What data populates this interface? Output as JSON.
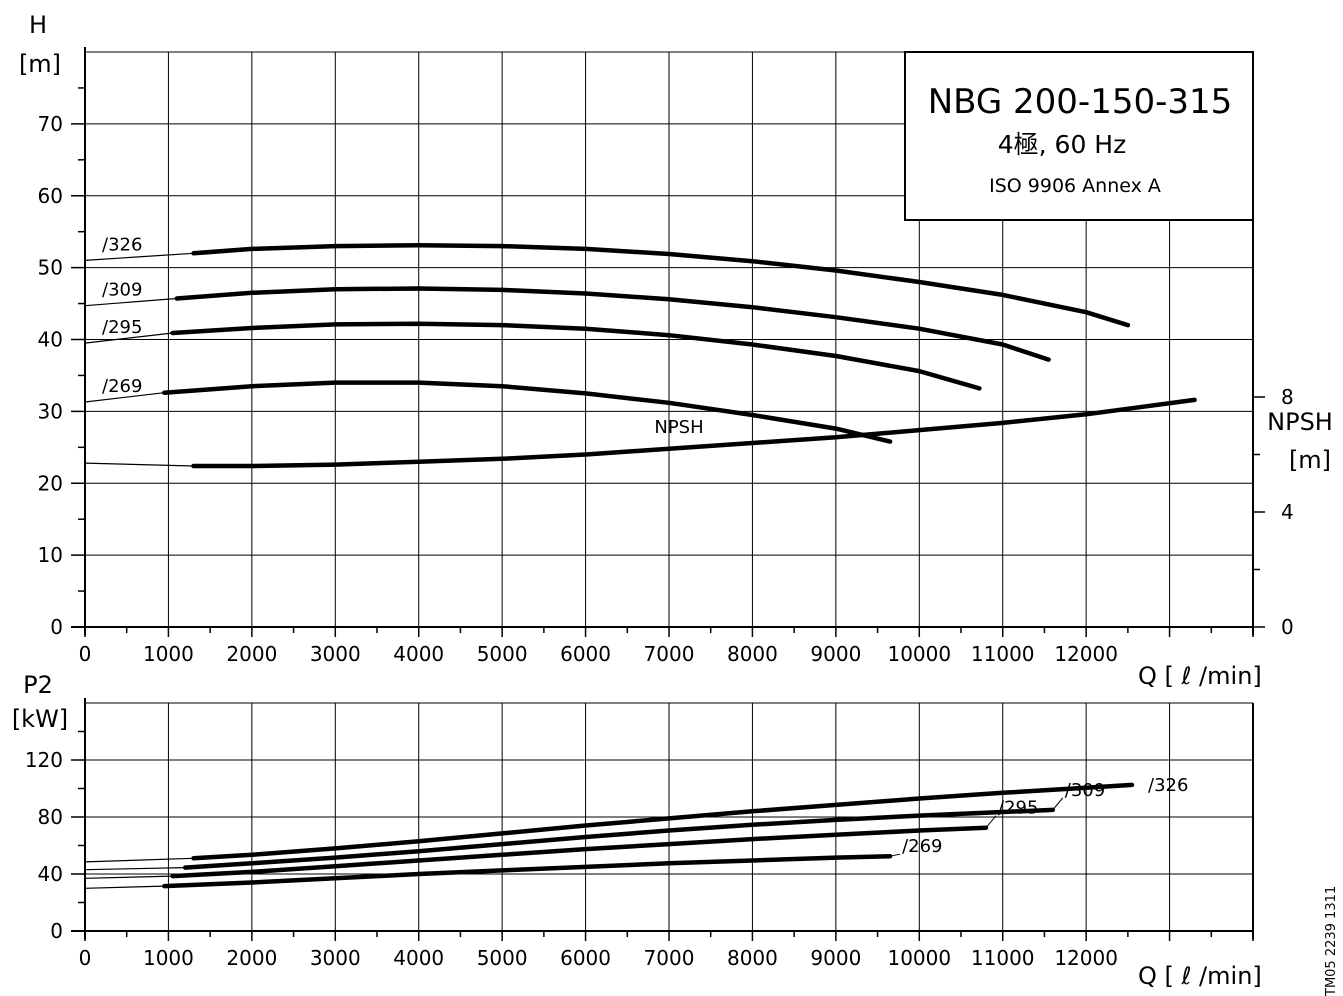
{
  "chart_data": [
    {
      "type": "line",
      "panel": "head",
      "title_box": {
        "model": "NBG 200-150-315",
        "poles_freq": "4極, 60 Hz",
        "standard": "ISO 9906 Annex A"
      },
      "y_axis": {
        "label": "H",
        "unit": "[m]",
        "ylim": [
          0,
          80
        ],
        "ticks": [
          0,
          10,
          20,
          30,
          40,
          50,
          60,
          70
        ]
      },
      "y2_axis": {
        "label": "NPSH",
        "unit": "[m]",
        "ylim": [
          0,
          20
        ],
        "ticks": [
          0,
          4,
          8
        ]
      },
      "x_axis": {
        "label": "Q [ ℓ /min]",
        "xlim": [
          0,
          14000
        ],
        "ticks": [
          0,
          1000,
          2000,
          3000,
          4000,
          5000,
          6000,
          7000,
          8000,
          9000,
          10000,
          11000,
          12000
        ]
      },
      "grid": true,
      "series": [
        {
          "name": "/326",
          "axis": "y",
          "extension": [
            [
              0,
              51
            ],
            [
              1300,
              52
            ]
          ],
          "points": [
            [
              1300,
              52
            ],
            [
              2000,
              52.6
            ],
            [
              3000,
              53
            ],
            [
              4000,
              53.1
            ],
            [
              5000,
              53
            ],
            [
              6000,
              52.6
            ],
            [
              7000,
              51.9
            ],
            [
              8000,
              50.9
            ],
            [
              9000,
              49.6
            ],
            [
              10000,
              48
            ],
            [
              11000,
              46.2
            ],
            [
              12000,
              43.8
            ],
            [
              12500,
              42
            ]
          ]
        },
        {
          "name": "/309",
          "axis": "y",
          "extension": [
            [
              0,
              44.7
            ],
            [
              1100,
              45.7
            ]
          ],
          "points": [
            [
              1100,
              45.7
            ],
            [
              2000,
              46.5
            ],
            [
              3000,
              47
            ],
            [
              4000,
              47.1
            ],
            [
              5000,
              46.9
            ],
            [
              6000,
              46.4
            ],
            [
              7000,
              45.6
            ],
            [
              8000,
              44.5
            ],
            [
              9000,
              43.1
            ],
            [
              10000,
              41.5
            ],
            [
              11000,
              39.3
            ],
            [
              11550,
              37.2
            ]
          ]
        },
        {
          "name": "/295",
          "axis": "y",
          "extension": [
            [
              0,
              39.5
            ],
            [
              1050,
              40.9
            ]
          ],
          "points": [
            [
              1050,
              40.9
            ],
            [
              2000,
              41.6
            ],
            [
              3000,
              42.1
            ],
            [
              4000,
              42.2
            ],
            [
              5000,
              42
            ],
            [
              6000,
              41.5
            ],
            [
              7000,
              40.6
            ],
            [
              8000,
              39.3
            ],
            [
              9000,
              37.7
            ],
            [
              10000,
              35.6
            ],
            [
              10720,
              33.2
            ]
          ]
        },
        {
          "name": "/269",
          "axis": "y",
          "extension": [
            [
              0,
              31.3
            ],
            [
              950,
              32.6
            ]
          ],
          "points": [
            [
              950,
              32.6
            ],
            [
              2000,
              33.5
            ],
            [
              3000,
              34
            ],
            [
              4000,
              34
            ],
            [
              5000,
              33.5
            ],
            [
              6000,
              32.5
            ],
            [
              7000,
              31.2
            ],
            [
              8000,
              29.5
            ],
            [
              9000,
              27.6
            ],
            [
              9650,
              25.8
            ]
          ]
        },
        {
          "name": "NPSH",
          "axis": "y2",
          "extension": [
            [
              0,
              5.7
            ],
            [
              1300,
              5.6
            ]
          ],
          "points": [
            [
              1300,
              5.6
            ],
            [
              2000,
              5.6
            ],
            [
              3000,
              5.65
            ],
            [
              4000,
              5.75
            ],
            [
              5000,
              5.85
            ],
            [
              6000,
              6
            ],
            [
              7000,
              6.2
            ],
            [
              8000,
              6.4
            ],
            [
              9000,
              6.6
            ],
            [
              10000,
              6.85
            ],
            [
              11000,
              7.1
            ],
            [
              12000,
              7.4
            ],
            [
              13300,
              7.9
            ]
          ]
        }
      ]
    },
    {
      "type": "line",
      "panel": "power",
      "y_axis": {
        "label": "P2",
        "unit": "[kW]",
        "ylim": [
          0,
          160
        ],
        "ticks": [
          0,
          40,
          80,
          120
        ]
      },
      "x_axis": {
        "label": "Q [ ℓ /min]",
        "xlim": [
          0,
          14000
        ],
        "ticks": [
          0,
          1000,
          2000,
          3000,
          4000,
          5000,
          6000,
          7000,
          8000,
          9000,
          10000,
          11000,
          12000
        ]
      },
      "grid": true,
      "series": [
        {
          "name": "/326",
          "extension": [
            [
              0,
              48.5
            ],
            [
              1300,
              51
            ]
          ],
          "points": [
            [
              1300,
              51
            ],
            [
              2000,
              53.5
            ],
            [
              3000,
              58
            ],
            [
              4000,
              63
            ],
            [
              5000,
              68.5
            ],
            [
              6000,
              74
            ],
            [
              7000,
              79
            ],
            [
              8000,
              84
            ],
            [
              9000,
              88.5
            ],
            [
              10000,
              93
            ],
            [
              11000,
              97
            ],
            [
              12000,
              100.5
            ],
            [
              12550,
              102.5
            ]
          ]
        },
        {
          "name": "/309",
          "extension": [
            [
              0,
              43
            ],
            [
              1200,
              44.5
            ]
          ],
          "points": [
            [
              1200,
              44.5
            ],
            [
              2000,
              47.5
            ],
            [
              3000,
              51.5
            ],
            [
              4000,
              56
            ],
            [
              5000,
              61
            ],
            [
              6000,
              66
            ],
            [
              7000,
              70.5
            ],
            [
              8000,
              74.5
            ],
            [
              9000,
              78
            ],
            [
              10000,
              81
            ],
            [
              11000,
              83.5
            ],
            [
              11600,
              85
            ]
          ]
        },
        {
          "name": "/295",
          "extension": [
            [
              0,
              37
            ],
            [
              1050,
              38.5
            ]
          ],
          "points": [
            [
              1050,
              38.5
            ],
            [
              2000,
              41.5
            ],
            [
              3000,
              45.5
            ],
            [
              4000,
              49.5
            ],
            [
              5000,
              53.5
            ],
            [
              6000,
              57.5
            ],
            [
              7000,
              61
            ],
            [
              8000,
              64.5
            ],
            [
              9000,
              67.5
            ],
            [
              10000,
              70.5
            ],
            [
              10800,
              72.5
            ]
          ]
        },
        {
          "name": "/269",
          "extension": [
            [
              0,
              30
            ],
            [
              950,
              31.5
            ]
          ],
          "points": [
            [
              950,
              31.5
            ],
            [
              2000,
              34
            ],
            [
              3000,
              37
            ],
            [
              4000,
              40
            ],
            [
              5000,
              42.5
            ],
            [
              6000,
              45
            ],
            [
              7000,
              47.5
            ],
            [
              8000,
              49.5
            ],
            [
              9000,
              51.5
            ],
            [
              9650,
              52.5
            ]
          ]
        }
      ]
    }
  ],
  "doc_code": "TM05 2239 1311"
}
